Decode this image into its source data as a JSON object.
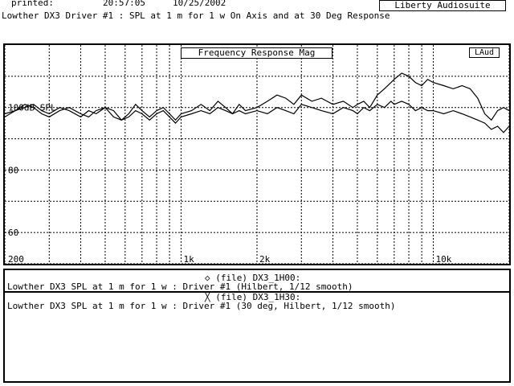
{
  "header": {
    "printed_label": "printed:",
    "time": "20:57:05",
    "date": "10/25/2002",
    "brand": "Liberty Audiosuite",
    "title": "Lowther DX3 Driver #1 : SPL at 1 m for 1 w On Axis and at 30 Deg Response"
  },
  "plot": {
    "title": "Frequency Response Mag",
    "badge": "LAud"
  },
  "legend": {
    "entry1_head": "◇ (file) DX3_1H00:",
    "entry1_desc": "Lowther DX3 SPL at 1 m for 1 w : Driver #1 (Hilbert, 1/12 smooth)",
    "entry2_head": "╳ (file) DX3_1H30:",
    "entry2_desc": "Lowther DX3 SPL at 1 m for 1 w : Driver #1 (30 deg, Hilbert, 1/12 smooth)"
  },
  "chart_data": {
    "type": "line",
    "title": "Frequency Response Mag",
    "xscale": "log",
    "xlim": [
      200,
      20000
    ],
    "ylim": [
      50,
      120
    ],
    "x_tick_labels": [
      {
        "value": 200,
        "label": "200"
      },
      {
        "value": 1000,
        "label": "1k"
      },
      {
        "value": 2000,
        "label": "2k"
      },
      {
        "value": 10000,
        "label": "10k"
      }
    ],
    "y_tick_labels": [
      {
        "value": 100,
        "label": "100dB SPL"
      },
      {
        "value": 80,
        "label": "80"
      },
      {
        "value": 60,
        "label": "60"
      }
    ],
    "x_grid": [
      200,
      300,
      400,
      500,
      600,
      700,
      800,
      900,
      1000,
      2000,
      3000,
      4000,
      5000,
      6000,
      7000,
      8000,
      9000,
      10000,
      20000
    ],
    "y_grid": [
      110,
      100,
      90,
      80,
      70,
      60,
      50
    ],
    "series": [
      {
        "name": "DX3_1H00",
        "x": [
          200,
          220,
          240,
          260,
          280,
          300,
          330,
          360,
          400,
          430,
          460,
          500,
          540,
          580,
          620,
          660,
          700,
          750,
          800,
          850,
          900,
          950,
          1000,
          1100,
          1200,
          1300,
          1400,
          1500,
          1600,
          1700,
          1800,
          2000,
          2200,
          2400,
          2600,
          2800,
          3000,
          3300,
          3600,
          4000,
          4400,
          4800,
          5000,
          5300,
          5600,
          6000,
          6400,
          6800,
          7000,
          7500,
          8000,
          8500,
          9000,
          9500,
          10000,
          11000,
          12000,
          13000,
          14000,
          15000,
          16000,
          17000,
          18000,
          19000,
          20000
        ],
        "y": [
          98,
          99,
          100,
          101,
          99,
          98,
          100,
          99,
          97,
          99,
          98,
          100,
          99,
          96,
          98,
          101,
          99,
          97,
          99,
          100,
          98,
          96,
          98,
          99,
          101,
          99,
          102,
          100,
          98,
          101,
          99,
          100,
          102,
          104,
          103,
          101,
          104,
          102,
          103,
          101,
          102,
          100,
          101,
          102,
          100,
          104,
          106,
          108,
          109,
          111,
          110,
          108,
          107,
          109,
          108,
          107,
          106,
          107,
          106,
          103,
          98,
          96,
          99,
          100,
          99
        ]
      },
      {
        "name": "DX3_1H30",
        "x": [
          200,
          220,
          240,
          260,
          280,
          300,
          330,
          360,
          400,
          430,
          460,
          500,
          540,
          580,
          620,
          660,
          700,
          750,
          800,
          850,
          900,
          950,
          1000,
          1100,
          1200,
          1300,
          1400,
          1500,
          1600,
          1700,
          1800,
          2000,
          2200,
          2400,
          2600,
          2800,
          3000,
          3300,
          3600,
          4000,
          4400,
          4800,
          5000,
          5300,
          5600,
          6000,
          6400,
          6800,
          7000,
          7500,
          8000,
          8500,
          9000,
          9500,
          10000,
          11000,
          12000,
          13000,
          14000,
          15000,
          16000,
          17000,
          18000,
          19000,
          20000
        ],
        "y": [
          97,
          99,
          101,
          100,
          98,
          97,
          99,
          100,
          98,
          97,
          99,
          100,
          97,
          96,
          97,
          99,
          98,
          96,
          98,
          99,
          97,
          95,
          97,
          98,
          99,
          98,
          100,
          99,
          98,
          99,
          98,
          99,
          98,
          100,
          99,
          98,
          101,
          100,
          99,
          98,
          100,
          99,
          98,
          100,
          99,
          101,
          100,
          102,
          101,
          102,
          101,
          99,
          100,
          99,
          99,
          98,
          99,
          98,
          97,
          96,
          95,
          93,
          94,
          92,
          94
        ]
      }
    ]
  }
}
